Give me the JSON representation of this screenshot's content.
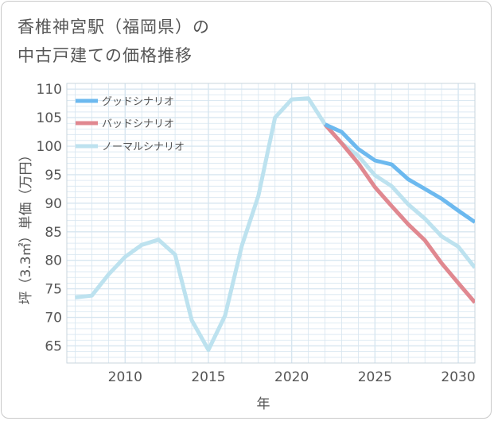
{
  "title": {
    "line1": "香椎神宮駅（福岡県）の",
    "line2": "中古戸建ての価格推移"
  },
  "colors": {
    "good": "#6cb9ef",
    "bad": "#e08890",
    "normal": "#bde2ef",
    "grid": "#d7e6f0",
    "axis": "#555555"
  },
  "chart_data": {
    "type": "line",
    "title": "香椎神宮駅（福岡県）の中古戸建ての価格推移",
    "xlabel": "年",
    "ylabel": "坪（3.3㎡）単価（万円）",
    "xlim": [
      2006.5,
      2031
    ],
    "ylim": [
      62,
      111
    ],
    "xticks": [
      2010,
      2015,
      2020,
      2025,
      2030
    ],
    "yticks": [
      65,
      70,
      75,
      80,
      85,
      90,
      95,
      100,
      105,
      110
    ],
    "grid": true,
    "legend_position": "top-left",
    "series": [
      {
        "key": "good",
        "name": "グッドシナリオ",
        "x": [
          2022,
          2023,
          2024,
          2025,
          2026,
          2027,
          2028,
          2029,
          2030,
          2031
        ],
        "y": [
          103.8,
          102.5,
          99.5,
          97.5,
          96.8,
          94.2,
          92.5,
          90.8,
          88.7,
          86.7
        ]
      },
      {
        "key": "bad",
        "name": "バッドシナリオ",
        "x": [
          2022,
          2023,
          2024,
          2025,
          2026,
          2027,
          2028,
          2029,
          2030,
          2031
        ],
        "y": [
          103.8,
          100.5,
          97.0,
          92.8,
          89.5,
          86.3,
          83.5,
          79.5,
          76.0,
          72.6
        ]
      },
      {
        "key": "normal",
        "name": "ノーマルシナリオ",
        "x": [
          2007,
          2008,
          2009,
          2010,
          2011,
          2012,
          2013,
          2014,
          2015,
          2016,
          2017,
          2018,
          2019,
          2020,
          2021,
          2022,
          2023,
          2024,
          2025,
          2026,
          2027,
          2028,
          2029,
          2030,
          2031
        ],
        "y": [
          73.5,
          73.8,
          77.5,
          80.6,
          82.7,
          83.6,
          81.0,
          69.5,
          64.3,
          70.3,
          82.5,
          91.3,
          105.0,
          108.2,
          108.4,
          103.8,
          100.5,
          98.3,
          94.9,
          93.0,
          89.8,
          87.3,
          84.2,
          82.4,
          78.7
        ]
      }
    ]
  }
}
